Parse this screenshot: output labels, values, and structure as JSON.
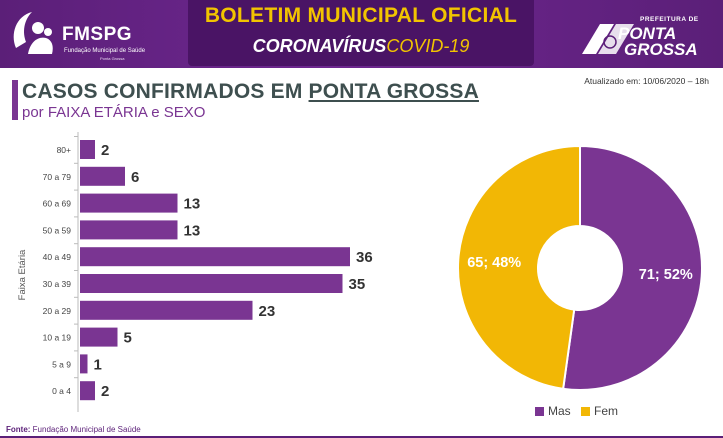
{
  "header": {
    "org_logo_text": "FMSPG",
    "org_logo_sub": "Fundação Municipal de Saúde",
    "org_logo_sub2": "Ponta Grossa",
    "banner_title": "BOLETIM MUNICIPAL OFICIAL",
    "banner_sub_main": "CORONAVÍRUS",
    "banner_sub_code": "COVID-19",
    "pref_small": "PREFEITURA DE",
    "pref_big_1": "PONTA",
    "pref_big_2": "GROSSA"
  },
  "updated": "Atualizado em: 10/06/2020 – 18h",
  "title": {
    "part1": "CASOS CONFIRMADOS EM ",
    "part2": "PONTA GROSSA",
    "subtitle": "por FAIXA ETÁRIA e SEXO"
  },
  "colors": {
    "purple": "#7a3592",
    "yellow": "#f2b705",
    "header_bg": "#5b1f78"
  },
  "chart_data": [
    {
      "type": "bar",
      "orientation": "horizontal",
      "ylabel": "Faixa Etária",
      "categories": [
        "80+",
        "70 a 79",
        "60 a 69",
        "50 a 59",
        "40 a 49",
        "30 a 39",
        "20 a 29",
        "10 a 19",
        "5 a 9",
        "0 a 4"
      ],
      "values": [
        2,
        6,
        13,
        13,
        36,
        35,
        23,
        5,
        1,
        2
      ],
      "xlim": [
        0,
        40
      ],
      "grid": false,
      "data_labels": true
    },
    {
      "type": "pie",
      "style": "donut",
      "categories": [
        "Mas",
        "Fem"
      ],
      "values": [
        71,
        65
      ],
      "percents": [
        52,
        48
      ],
      "slice_labels": [
        "71; 52%",
        "65; 48%"
      ],
      "legend": [
        "Mas",
        "Fem"
      ],
      "legend_position": "bottom"
    }
  ],
  "source": {
    "label": "Fonte:",
    "text": "Fundação Municipal de Saúde"
  }
}
